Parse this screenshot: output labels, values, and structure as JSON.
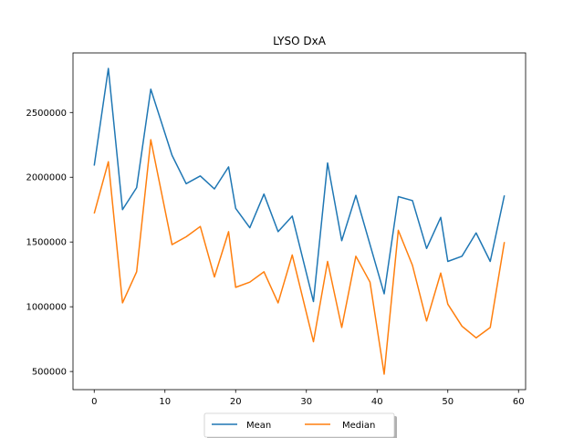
{
  "chart_data": {
    "type": "line",
    "title": "LYSO DxA",
    "xlabel": "",
    "ylabel": "",
    "xlim": [
      -3,
      61
    ],
    "ylim": [
      360000,
      2960000
    ],
    "xticks": [
      0,
      10,
      20,
      30,
      40,
      50,
      60
    ],
    "yticks": [
      500000,
      1000000,
      1500000,
      2000000,
      2500000
    ],
    "xtick_labels": [
      "0",
      "10",
      "20",
      "30",
      "40",
      "50",
      "60"
    ],
    "ytick_labels": [
      "500000",
      "1000000",
      "1500000",
      "2000000",
      "2500000"
    ],
    "grid": false,
    "legend": "bottom-center",
    "x": [
      0,
      2,
      4,
      6,
      8,
      11,
      13,
      15,
      17,
      19,
      20,
      22,
      24,
      26,
      28,
      31,
      33,
      35,
      37,
      39,
      41,
      43,
      45,
      47,
      49,
      50,
      52,
      54,
      56,
      58
    ],
    "series": [
      {
        "name": "Mean",
        "color": "#1f77b4",
        "values": [
          2090000,
          2840000,
          1750000,
          1920000,
          2680000,
          2170000,
          1950000,
          2010000,
          1910000,
          2080000,
          1760000,
          1610000,
          1870000,
          1580000,
          1700000,
          1040000,
          2110000,
          1510000,
          1860000,
          1480000,
          1100000,
          1850000,
          1820000,
          1450000,
          1690000,
          1350000,
          1390000,
          1570000,
          1350000,
          1860000
        ]
      },
      {
        "name": "Median",
        "color": "#ff7f0e",
        "values": [
          1720000,
          2120000,
          1030000,
          1270000,
          2290000,
          1480000,
          1540000,
          1620000,
          1230000,
          1580000,
          1150000,
          1190000,
          1270000,
          1030000,
          1400000,
          730000,
          1350000,
          840000,
          1390000,
          1190000,
          480000,
          1590000,
          1320000,
          890000,
          1260000,
          1020000,
          850000,
          760000,
          840000,
          1500000
        ]
      }
    ]
  }
}
